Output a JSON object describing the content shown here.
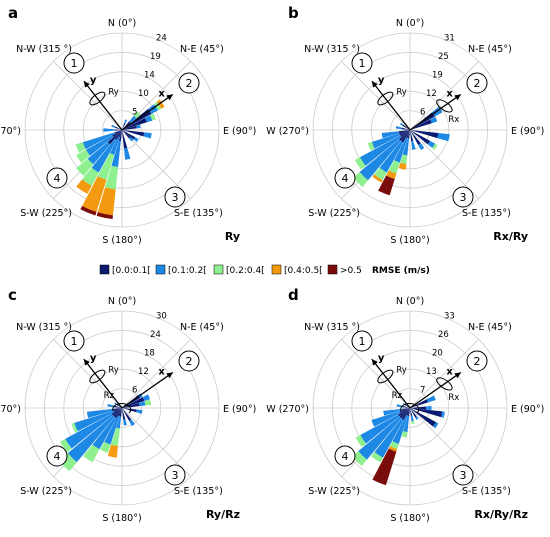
{
  "legend": {
    "items": [
      {
        "label": "[0.0:0.1[",
        "color": "#0a1a6e"
      },
      {
        "label": "[0.1:0.2[",
        "color": "#1e88e5"
      },
      {
        "label": "[0.2:0.4[",
        "color": "#8ef08e"
      },
      {
        "label": "[0.4:0.5[",
        "color": "#f39a10"
      },
      {
        "label": ">0.5",
        "color": "#7a0c0c"
      }
    ],
    "title": "RMSE (m/s)"
  },
  "direction_labels": [
    "N (0°)",
    "N-E (45°)",
    "E (90°)",
    "S-E (135°)",
    "S (180°)",
    "S-W (225°)",
    "W (270°)",
    "N-W (315 °)"
  ],
  "chart_data": [
    {
      "panel": "a",
      "type": "polar-bar",
      "mode": "Ry",
      "ring_ticks": [
        "5",
        "10",
        "14",
        "19",
        "24"
      ],
      "rmax": 26,
      "sectors": [
        {
          "dir": 22.5,
          "stack": [
            2,
            1
          ]
        },
        {
          "dir": 45,
          "stack": [
            3,
            2,
            1.5
          ]
        },
        {
          "dir": 56.25,
          "stack": [
            9,
            2,
            1,
            1
          ]
        },
        {
          "dir": 67.5,
          "stack": [
            7,
            1.5,
            1
          ]
        },
        {
          "dir": 78.75,
          "stack": [
            4,
            1
          ]
        },
        {
          "dir": 101.25,
          "stack": [
            6,
            2
          ]
        },
        {
          "dir": 123.75,
          "stack": [
            4,
            1
          ]
        },
        {
          "dir": 135,
          "stack": [
            3,
            1
          ]
        },
        {
          "dir": 168.75,
          "stack": [
            5,
            3
          ]
        },
        {
          "dir": 191.25,
          "stack": [
            3,
            7,
            6,
            7,
            1
          ]
        },
        {
          "dir": 202.5,
          "stack": [
            2,
            5,
            7,
            9,
            1
          ]
        },
        {
          "dir": 213.75,
          "stack": [
            3,
            10,
            4,
            2.5
          ]
        },
        {
          "dir": 225,
          "stack": [
            5,
            7,
            4
          ]
        },
        {
          "dir": 236.25,
          "stack": [
            3,
            8,
            3
          ]
        },
        {
          "dir": 247.5,
          "stack": [
            2,
            9,
            2
          ]
        },
        {
          "dir": 270,
          "stack": [
            2,
            3
          ]
        },
        {
          "dir": 292.5,
          "stack": [
            2,
            1
          ]
        }
      ]
    },
    {
      "panel": "b",
      "type": "polar-bar",
      "mode": "Rx/Ry",
      "ring_ticks": [
        "6",
        "12",
        "19",
        "25",
        "31"
      ],
      "rmax": 34,
      "sectors": [
        {
          "dir": 56.25,
          "stack": [
            10,
            3
          ]
        },
        {
          "dir": 67.5,
          "stack": [
            8,
            2
          ]
        },
        {
          "dir": 101.25,
          "stack": [
            10,
            4
          ]
        },
        {
          "dir": 123.75,
          "stack": [
            8,
            2,
            1
          ]
        },
        {
          "dir": 146.25,
          "stack": [
            6,
            2
          ]
        },
        {
          "dir": 168.75,
          "stack": [
            4,
            3
          ]
        },
        {
          "dir": 191.25,
          "stack": [
            3,
            6,
            3,
            2
          ]
        },
        {
          "dir": 202.5,
          "stack": [
            3,
            9,
            4,
            2,
            6
          ]
        },
        {
          "dir": 213.75,
          "stack": [
            5,
            12,
            3,
            1
          ]
        },
        {
          "dir": 225,
          "stack": [
            5,
            18,
            3
          ]
        },
        {
          "dir": 236.25,
          "stack": [
            4,
            16,
            2
          ]
        },
        {
          "dir": 247.5,
          "stack": [
            4,
            10,
            1.5
          ]
        },
        {
          "dir": 258.75,
          "stack": [
            4,
            6
          ]
        },
        {
          "dir": 281.25,
          "stack": [
            3,
            2
          ]
        },
        {
          "dir": 303.75,
          "stack": [
            3,
            1
          ]
        }
      ]
    },
    {
      "panel": "c",
      "type": "polar-bar",
      "mode": "Ry/Rz",
      "ring_ticks": [
        "6",
        "12",
        "18",
        "24",
        "30"
      ],
      "rmax": 33,
      "sectors": [
        {
          "dir": 56.25,
          "stack": [
            7,
            1
          ]
        },
        {
          "dir": 67.5,
          "stack": [
            8,
            2
          ]
        },
        {
          "dir": 78.75,
          "stack": [
            6,
            2,
            2
          ]
        },
        {
          "dir": 101.25,
          "stack": [
            5,
            2
          ]
        },
        {
          "dir": 146.25,
          "stack": [
            5,
            2
          ]
        },
        {
          "dir": 168.75,
          "stack": [
            4,
            2
          ]
        },
        {
          "dir": 191.25,
          "stack": [
            3,
            4,
            6,
            4
          ]
        },
        {
          "dir": 202.5,
          "stack": [
            3,
            10,
            3
          ]
        },
        {
          "dir": 213.75,
          "stack": [
            4,
            12,
            5
          ]
        },
        {
          "dir": 225,
          "stack": [
            4,
            20,
            4
          ]
        },
        {
          "dir": 236.25,
          "stack": [
            4,
            18,
            2
          ]
        },
        {
          "dir": 247.5,
          "stack": [
            3,
            14,
            1
          ]
        },
        {
          "dir": 258.75,
          "stack": [
            3,
            9
          ]
        },
        {
          "dir": 281.25,
          "stack": [
            3,
            2
          ]
        },
        {
          "dir": 303.75,
          "stack": [
            2,
            1
          ]
        }
      ]
    },
    {
      "panel": "d",
      "type": "polar-bar",
      "mode": "Rx/Ry/Rz",
      "ring_ticks": [
        "7",
        "13",
        "20",
        "26",
        "33"
      ],
      "rmax": 36,
      "sectors": [
        {
          "dir": 67.5,
          "stack": [
            7,
            3
          ]
        },
        {
          "dir": 90,
          "stack": [
            6,
            2
          ]
        },
        {
          "dir": 101.25,
          "stack": [
            12,
            1
          ]
        },
        {
          "dir": 123.75,
          "stack": [
            11,
            1
          ]
        },
        {
          "dir": 146.25,
          "stack": [
            4,
            1
          ]
        },
        {
          "dir": 168.75,
          "stack": [
            3,
            2,
            1
          ]
        },
        {
          "dir": 191.25,
          "stack": [
            3,
            6,
            2
          ]
        },
        {
          "dir": 202.5,
          "stack": [
            3,
            11,
            2,
            1,
            13
          ]
        },
        {
          "dir": 213.75,
          "stack": [
            5,
            16,
            2
          ]
        },
        {
          "dir": 225,
          "stack": [
            5,
            20,
            3
          ]
        },
        {
          "dir": 236.25,
          "stack": [
            5,
            16,
            2
          ]
        },
        {
          "dir": 247.5,
          "stack": [
            4,
            11
          ]
        },
        {
          "dir": 258.75,
          "stack": [
            3,
            7
          ]
        },
        {
          "dir": 281.25,
          "stack": [
            3,
            2
          ]
        },
        {
          "dir": 303.75,
          "stack": [
            2,
            1
          ]
        }
      ]
    }
  ],
  "glyphs": {
    "x": "x",
    "y": "y",
    "Rx": "Rx",
    "Ry": "Ry",
    "Rz": "Rz",
    "region_1": "1",
    "region_2": "2",
    "region_3": "3",
    "region_4": "4"
  }
}
